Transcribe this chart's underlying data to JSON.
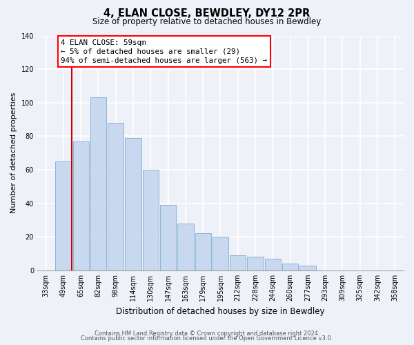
{
  "title": "4, ELAN CLOSE, BEWDLEY, DY12 2PR",
  "subtitle": "Size of property relative to detached houses in Bewdley",
  "xlabel": "Distribution of detached houses by size in Bewdley",
  "ylabel": "Number of detached properties",
  "footer_lines": [
    "Contains HM Land Registry data © Crown copyright and database right 2024.",
    "Contains public sector information licensed under the Open Government Licence v3.0."
  ],
  "bar_labels": [
    "33sqm",
    "49sqm",
    "65sqm",
    "82sqm",
    "98sqm",
    "114sqm",
    "130sqm",
    "147sqm",
    "163sqm",
    "179sqm",
    "195sqm",
    "212sqm",
    "228sqm",
    "244sqm",
    "260sqm",
    "277sqm",
    "293sqm",
    "309sqm",
    "325sqm",
    "342sqm",
    "358sqm"
  ],
  "bar_heights": [
    0,
    65,
    77,
    103,
    88,
    79,
    60,
    39,
    28,
    22,
    20,
    9,
    8,
    7,
    4,
    3,
    0,
    0,
    0,
    0,
    0
  ],
  "bar_color": "#c8d9ef",
  "bar_edge_color": "#8ab4d8",
  "vline_color": "#cc0000",
  "vline_x_idx": 1.5,
  "ylim": [
    0,
    140
  ],
  "yticks": [
    0,
    20,
    40,
    60,
    80,
    100,
    120,
    140
  ],
  "annotation_text_line1": "4 ELAN CLOSE: 59sqm",
  "annotation_text_line2": "← 5% of detached houses are smaller (29)",
  "annotation_text_line3": "94% of semi-detached houses are larger (563) →",
  "bg_color": "#eef2f8",
  "plot_bg_color": "#eef2f8",
  "grid_color": "#ffffff",
  "title_fontsize": 10.5,
  "subtitle_fontsize": 8.5,
  "xlabel_fontsize": 8.5,
  "ylabel_fontsize": 8,
  "tick_fontsize": 7,
  "annotation_fontsize": 7.8,
  "footer_fontsize": 6.0
}
